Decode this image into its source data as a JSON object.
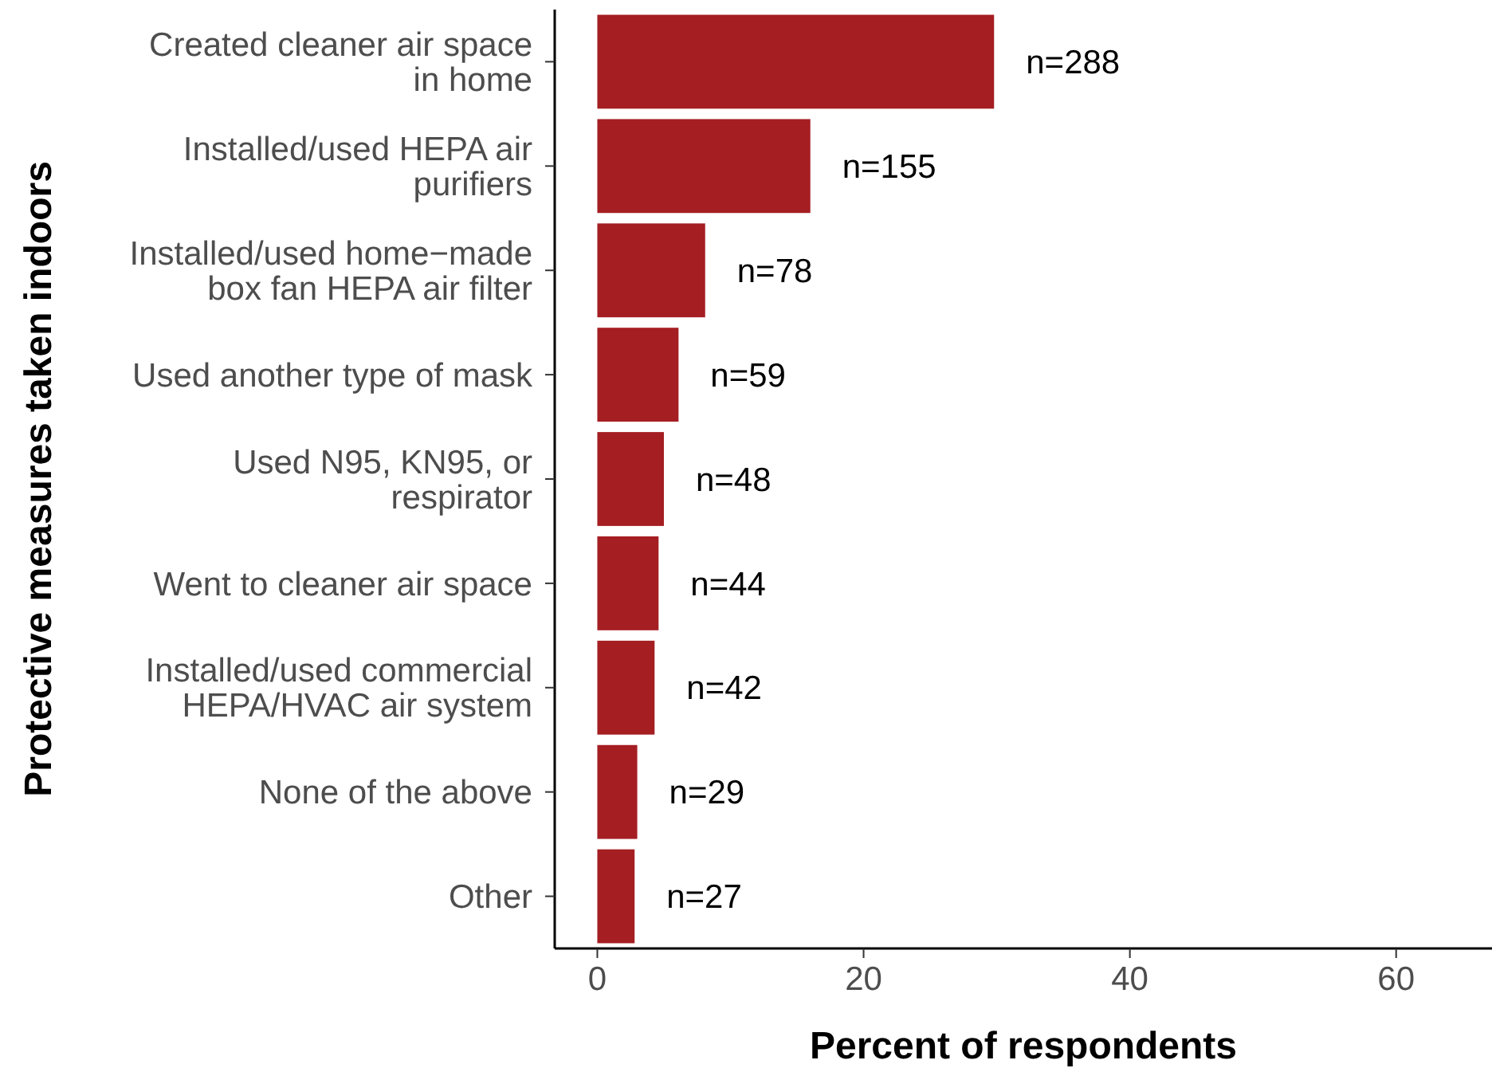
{
  "chart_data": {
    "type": "bar",
    "orientation": "horizontal",
    "categories": [
      "Created cleaner air space in home",
      "Installed/used HEPA air purifiers",
      "Installed/used home−made box fan HEPA air filter",
      "Used another type of mask",
      "Used N95, KN95, or respirator",
      "Went to cleaner air space",
      "Installed/used commercial HEPA/HVAC air system",
      "None of the above",
      "Other"
    ],
    "values": [
      29.8,
      16.0,
      8.1,
      6.1,
      5.0,
      4.6,
      4.3,
      3.0,
      2.8
    ],
    "annotations": [
      {
        "text": "n=288",
        "x": 29.8,
        "y": "Created cleaner air space in home"
      },
      {
        "text": "n=155",
        "x": 16.0,
        "y": "Installed/used HEPA air purifiers"
      },
      {
        "text": "n=78",
        "x": 8.1,
        "y": "Installed/used home−made box fan HEPA air filter"
      },
      {
        "text": "n=59",
        "x": 6.1,
        "y": "Used another type of mask"
      },
      {
        "text": "n=48",
        "x": 5.0,
        "y": "Used N95, KN95, or respirator"
      },
      {
        "text": "n=44",
        "x": 4.6,
        "y": "Went to cleaner air space"
      },
      {
        "text": "n=42",
        "x": 4.3,
        "y": "Installed/used commercial HEPA/HVAC air system"
      },
      {
        "text": "n=29",
        "x": 3.0,
        "y": "None of the above"
      },
      {
        "text": "n=27",
        "x": 2.8,
        "y": "Other"
      }
    ],
    "color": "#a51e22",
    "xlim": [
      -3.2,
      67.2
    ],
    "xticks": [
      0,
      20,
      40,
      60
    ],
    "xlabel": "Percent of respondents",
    "ylabel": "Protective measures taken indoors",
    "grid": false
  }
}
